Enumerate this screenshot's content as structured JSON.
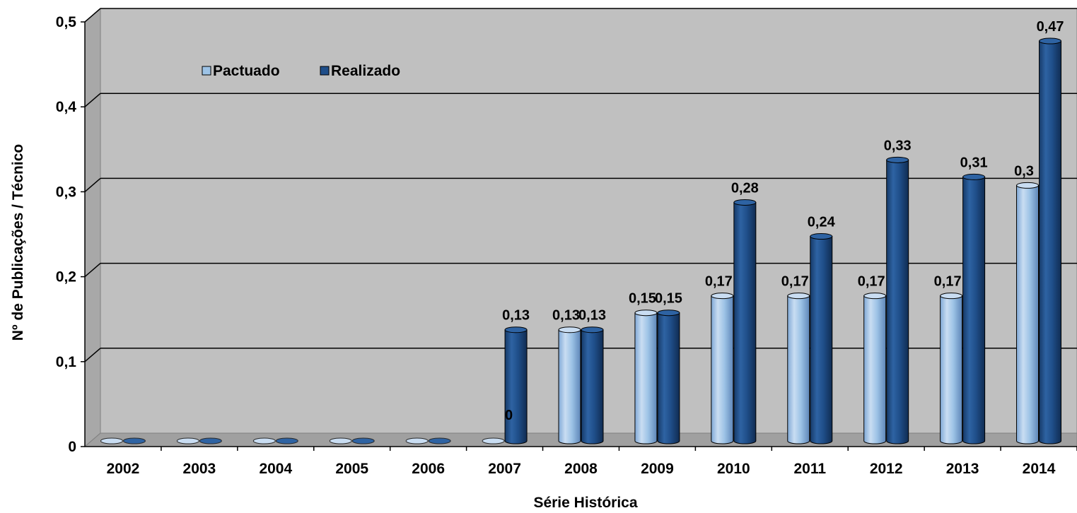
{
  "chart_data": {
    "type": "bar",
    "xlabel": "Série Histórica",
    "ylabel": "Nº de Publicações / Técnico",
    "categories": [
      "2002",
      "2003",
      "2004",
      "2005",
      "2006",
      "2007",
      "2008",
      "2009",
      "2010",
      "2011",
      "2012",
      "2013",
      "2014"
    ],
    "series": [
      {
        "name": "Pactuado",
        "color": "#9DC3E6",
        "values": [
          0,
          0,
          0,
          0,
          0,
          0,
          0.13,
          0.15,
          0.17,
          0.17,
          0.17,
          0.17,
          0.3
        ],
        "data_labels": [
          "",
          "",
          "",
          "",
          "",
          "",
          "0,13",
          "0,15",
          "0,17",
          "0,17",
          "0,17",
          "0,17",
          "0,3"
        ]
      },
      {
        "name": "Realizado",
        "color": "#1F4E89",
        "values": [
          0,
          0,
          0,
          0,
          0,
          0.13,
          0.13,
          0.15,
          0.28,
          0.24,
          0.33,
          0.31,
          0.47
        ],
        "data_labels": [
          "",
          "",
          "",
          "",
          "",
          "0,13",
          "0,13",
          "0,15",
          "0,28",
          "0,24",
          "0,33",
          "0,31",
          "0,47"
        ]
      }
    ],
    "extra_labels": [
      {
        "category": "2007",
        "text": "0"
      }
    ],
    "ylim": [
      0,
      0.5
    ],
    "yticks": [
      0,
      0.1,
      0.2,
      0.3,
      0.4,
      0.5
    ],
    "ytick_labels": [
      "0",
      "0,1",
      "0,2",
      "0,3",
      "0,4",
      "0,5"
    ],
    "grid": true,
    "legend_position": "top-left",
    "style": "3d-cylinder",
    "wall_color": "#C0C0C0",
    "floor_color": "#A0A0A0"
  }
}
